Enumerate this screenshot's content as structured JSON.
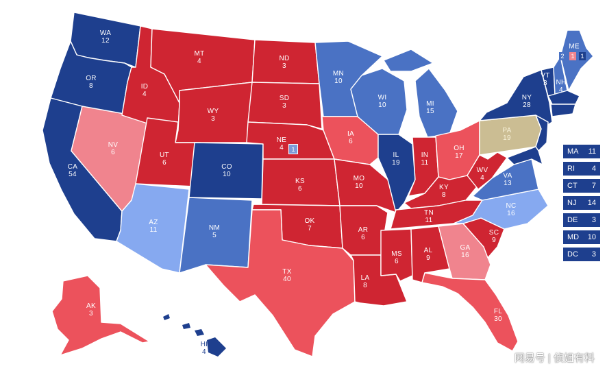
{
  "colors": {
    "solid_dem": "#1e3f8e",
    "likely_dem": "#4a72c4",
    "lean_dem": "#86a9f0",
    "tossup": "#cbbd93",
    "lean_rep": "#f0848e",
    "likely_rep": "#ec525c",
    "solid_rep": "#cf2532"
  },
  "states": {
    "WA": {
      "abbr": "WA",
      "ev": "12"
    },
    "OR": {
      "abbr": "OR",
      "ev": "8"
    },
    "CA": {
      "abbr": "CA",
      "ev": "54"
    },
    "ID": {
      "abbr": "ID",
      "ev": "4"
    },
    "NV": {
      "abbr": "NV",
      "ev": "6"
    },
    "MT": {
      "abbr": "MT",
      "ev": "4"
    },
    "WY": {
      "abbr": "WY",
      "ev": "3"
    },
    "UT": {
      "abbr": "UT",
      "ev": "6"
    },
    "AZ": {
      "abbr": "AZ",
      "ev": "11"
    },
    "CO": {
      "abbr": "CO",
      "ev": "10"
    },
    "NM": {
      "abbr": "NM",
      "ev": "5"
    },
    "ND": {
      "abbr": "ND",
      "ev": "3"
    },
    "SD": {
      "abbr": "SD",
      "ev": "3"
    },
    "NE": {
      "abbr": "NE",
      "ev": "4"
    },
    "KS": {
      "abbr": "KS",
      "ev": "6"
    },
    "OK": {
      "abbr": "OK",
      "ev": "7"
    },
    "TX": {
      "abbr": "TX",
      "ev": "40"
    },
    "MN": {
      "abbr": "MN",
      "ev": "10"
    },
    "IA": {
      "abbr": "IA",
      "ev": "6"
    },
    "MO": {
      "abbr": "MO",
      "ev": "10"
    },
    "AR": {
      "abbr": "AR",
      "ev": "6"
    },
    "LA": {
      "abbr": "LA",
      "ev": "8"
    },
    "WI": {
      "abbr": "WI",
      "ev": "10"
    },
    "IL": {
      "abbr": "IL",
      "ev": "19"
    },
    "MI": {
      "abbr": "MI",
      "ev": "15"
    },
    "IN": {
      "abbr": "IN",
      "ev": "11"
    },
    "OH": {
      "abbr": "OH",
      "ev": "17"
    },
    "KY": {
      "abbr": "KY",
      "ev": "8"
    },
    "TN": {
      "abbr": "TN",
      "ev": "11"
    },
    "MS": {
      "abbr": "MS",
      "ev": "6"
    },
    "AL": {
      "abbr": "AL",
      "ev": "9"
    },
    "GA": {
      "abbr": "GA",
      "ev": "16"
    },
    "FL": {
      "abbr": "FL",
      "ev": "30"
    },
    "SC": {
      "abbr": "SC",
      "ev": "9"
    },
    "NC": {
      "abbr": "NC",
      "ev": "16"
    },
    "VA": {
      "abbr": "VA",
      "ev": "13"
    },
    "WV": {
      "abbr": "WV",
      "ev": "4"
    },
    "PA": {
      "abbr": "PA",
      "ev": "19"
    },
    "NY": {
      "abbr": "NY",
      "ev": "28"
    },
    "VT": {
      "abbr": "VT",
      "ev": "3"
    },
    "NH": {
      "abbr": "NH",
      "ev": "4"
    },
    "ME": {
      "abbr": "ME",
      "ev": "2",
      "cd1": "1",
      "cd2": "1"
    },
    "AK": {
      "abbr": "AK",
      "ev": "3"
    },
    "HI": {
      "abbr": "HI",
      "ev": "4"
    }
  },
  "ne_district": "1",
  "legend": [
    {
      "abbr": "MA",
      "ev": "11"
    },
    {
      "abbr": "RI",
      "ev": "4"
    },
    {
      "abbr": "CT",
      "ev": "7"
    },
    {
      "abbr": "NJ",
      "ev": "14"
    },
    {
      "abbr": "DE",
      "ev": "3"
    },
    {
      "abbr": "MD",
      "ev": "10"
    },
    {
      "abbr": "DC",
      "ev": "3"
    }
  ],
  "watermark": "网易号 | 侦姐有料"
}
